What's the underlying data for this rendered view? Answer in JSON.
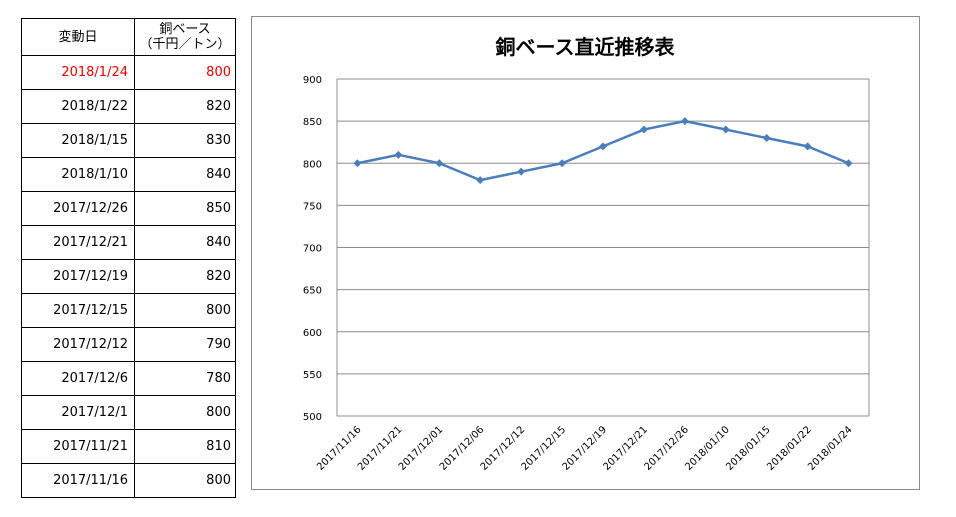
{
  "table": {
    "header_date": "変動日",
    "header_price_line1": "銅ベース",
    "header_price_line2": "（千円／トン）",
    "rows": [
      {
        "date": "2018/1/24",
        "price": "800"
      },
      {
        "date": "2018/1/22",
        "price": "820"
      },
      {
        "date": "2018/1/15",
        "price": "830"
      },
      {
        "date": "2018/1/10",
        "price": "840"
      },
      {
        "date": "2017/12/26",
        "price": "850"
      },
      {
        "date": "2017/12/21",
        "price": "840"
      },
      {
        "date": "2017/12/19",
        "price": "820"
      },
      {
        "date": "2017/12/15",
        "price": "800"
      },
      {
        "date": "2017/12/12",
        "price": "790"
      },
      {
        "date": "2017/12/6",
        "price": "780"
      },
      {
        "date": "2017/12/1",
        "price": "800"
      },
      {
        "date": "2017/11/21",
        "price": "810"
      },
      {
        "date": "2017/11/16",
        "price": "800"
      }
    ],
    "highlight_color": "#e00000"
  },
  "chart_data": {
    "type": "line",
    "title": "銅ベース直近推移表",
    "xlabel": "",
    "ylabel": "",
    "categories": [
      "2017/11/16",
      "2017/11/21",
      "2017/12/01",
      "2017/12/06",
      "2017/12/12",
      "2017/12/15",
      "2017/12/19",
      "2017/12/21",
      "2017/12/26",
      "2018/01/10",
      "2018/01/15",
      "2018/01/22",
      "2018/01/24"
    ],
    "series": [
      {
        "values": [
          800,
          810,
          800,
          780,
          790,
          800,
          820,
          840,
          850,
          840,
          830,
          820,
          800
        ],
        "color": "#4a7ebb"
      }
    ],
    "ylim": [
      500,
      900
    ],
    "yticks": [
      500,
      550,
      600,
      650,
      700,
      750,
      800,
      850,
      900
    ],
    "grid": true,
    "legend": "none",
    "marker": "diamond"
  }
}
